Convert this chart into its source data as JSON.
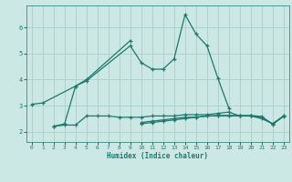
{
  "xlabel": "Humidex (Indice chaleur)",
  "x_values": [
    0,
    1,
    2,
    3,
    4,
    5,
    6,
    7,
    8,
    9,
    10,
    11,
    12,
    13,
    14,
    15,
    16,
    17,
    18,
    19,
    20,
    21,
    22,
    23
  ],
  "series1": [
    3.05,
    3.1,
    null,
    null,
    3.75,
    3.95,
    null,
    null,
    null,
    5.3,
    4.65,
    4.4,
    4.4,
    4.8,
    6.5,
    5.75,
    5.3,
    4.05,
    2.9,
    null,
    null,
    null,
    null,
    null
  ],
  "series2": [
    null,
    null,
    2.2,
    2.3,
    3.75,
    4.0,
    null,
    null,
    null,
    5.5,
    null,
    null,
    null,
    null,
    null,
    null,
    null,
    null,
    null,
    null,
    null,
    null,
    null,
    null
  ],
  "series3": [
    null,
    null,
    2.2,
    2.25,
    2.25,
    2.6,
    2.6,
    2.6,
    2.55,
    2.55,
    2.55,
    2.6,
    2.6,
    2.6,
    2.65,
    2.65,
    2.65,
    2.7,
    2.75,
    2.6,
    2.6,
    2.5,
    2.3,
    2.6
  ],
  "series4": [
    null,
    null,
    null,
    null,
    null,
    null,
    null,
    null,
    null,
    null,
    2.35,
    2.4,
    2.45,
    2.5,
    2.55,
    2.55,
    2.6,
    2.6,
    2.6,
    2.6,
    2.6,
    2.55,
    2.3,
    2.6
  ],
  "series5": [
    null,
    null,
    null,
    null,
    null,
    null,
    null,
    null,
    null,
    null,
    2.3,
    2.35,
    2.4,
    2.45,
    2.5,
    2.55,
    2.6,
    2.62,
    2.62,
    2.62,
    2.62,
    2.58,
    2.28,
    2.58
  ],
  "line_color": "#1a7a6e",
  "bg_color": "#cce8e4",
  "grid_color": "#9eccc6",
  "ylim": [
    1.6,
    6.85
  ],
  "xlim": [
    -0.5,
    23.5
  ],
  "yticks": [
    2,
    3,
    4,
    5,
    6
  ],
  "xticks": [
    0,
    1,
    2,
    3,
    4,
    5,
    6,
    7,
    8,
    9,
    10,
    11,
    12,
    13,
    14,
    15,
    16,
    17,
    18,
    19,
    20,
    21,
    22,
    23
  ]
}
